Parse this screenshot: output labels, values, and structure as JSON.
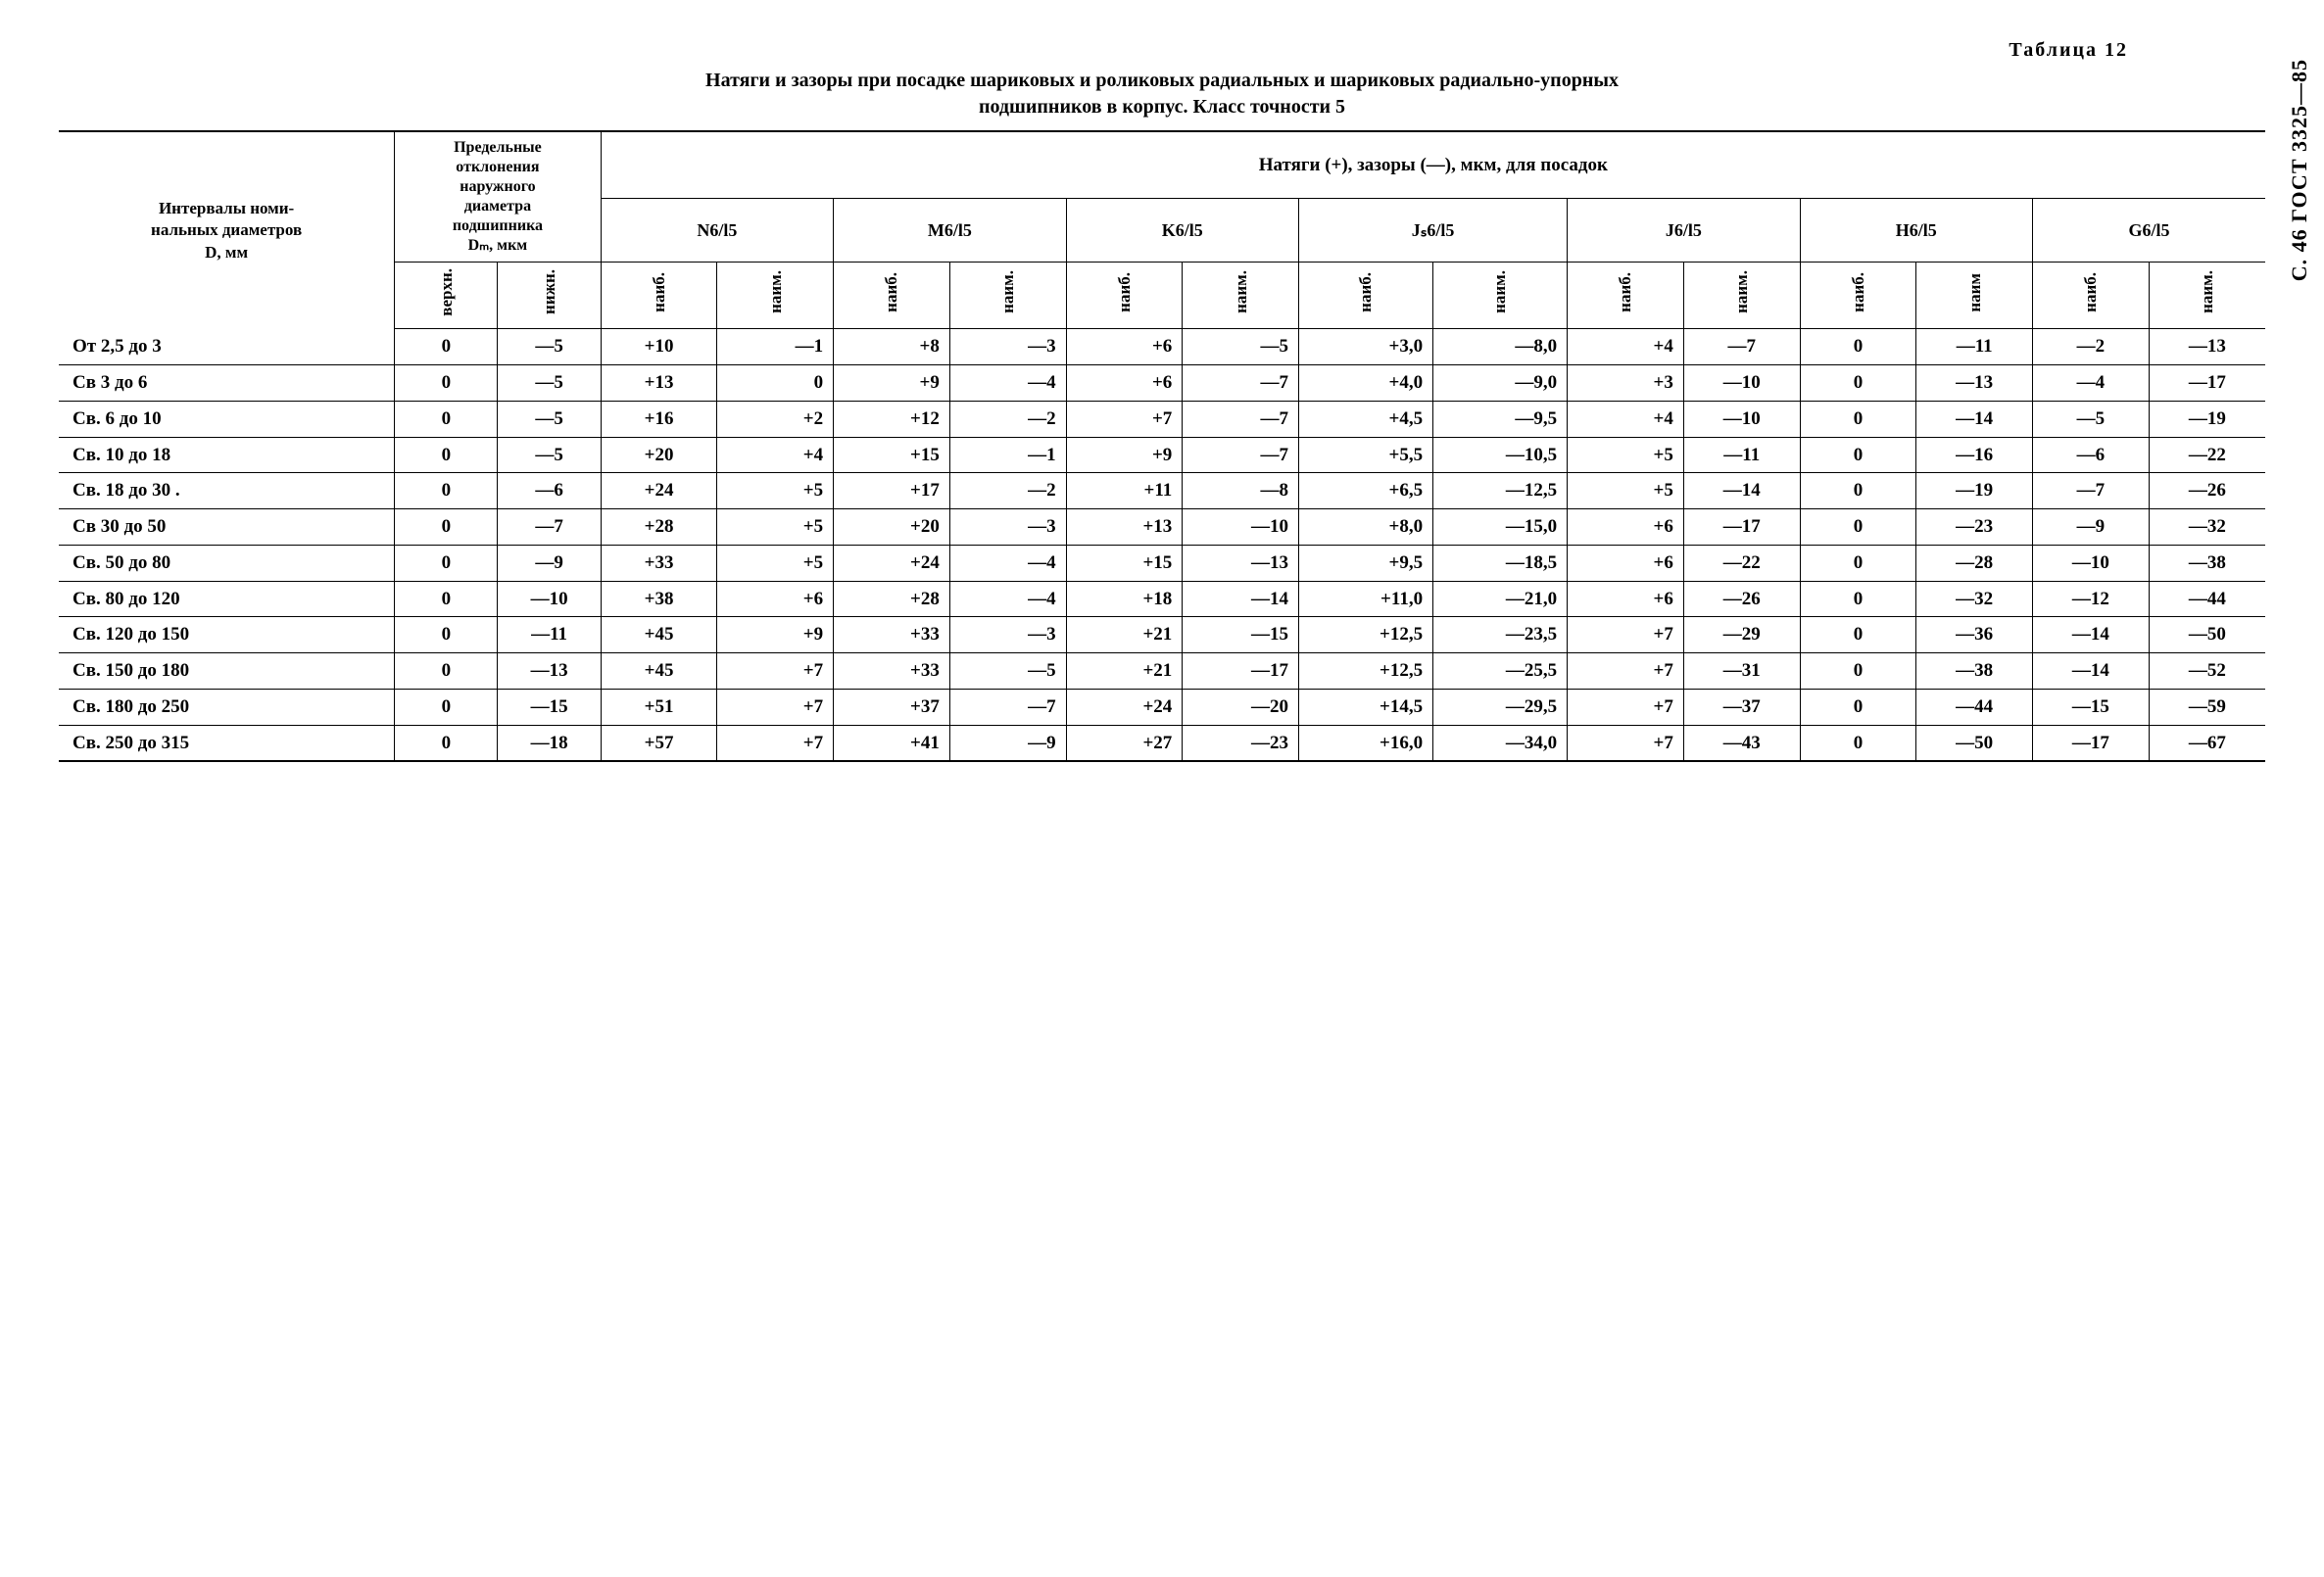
{
  "side_label": "С. 46 ГОСТ 3325—85",
  "table_number": "Таблица 12",
  "title_line1": "Натяги и зазоры при посадке шариковых и роликовых радиальных и шариковых радиально-упорных",
  "title_line2": "подшипников в корпус. Класс точности 5",
  "header": {
    "interval": "Интервалы номи-\nнальных диаметров\nD, мм",
    "deviation": "Предельные\nотклонения\nнаружного\nдиаметра\nподшипника\nDₘ, мкм",
    "fits_spanner": "Натяги (+), зазоры (—), мкм, для посадок",
    "fits": [
      "N6/l5",
      "M6/l5",
      "K6/l5",
      "Jₛ6/l5",
      "J6/l5",
      "H6/l5",
      "G6/l5"
    ],
    "dev_sub": {
      "upper": "верхн.",
      "lower": "нижн."
    },
    "fit_sub": {
      "max": "наиб.",
      "min": "наим."
    },
    "fit_sub_h6": {
      "max": "наиб.",
      "min": "наим"
    }
  },
  "rows": [
    {
      "interval": "От 2,5 до 3",
      "upper": "0",
      "lower": "—5",
      "n": [
        "+10",
        "—1"
      ],
      "m": [
        "+8",
        "—3"
      ],
      "k": [
        "+6",
        "—5"
      ],
      "js": [
        "+3,0",
        "—8,0"
      ],
      "j": [
        "+4",
        "—7"
      ],
      "h": [
        "0",
        "—11"
      ],
      "g": [
        "—2",
        "—13"
      ]
    },
    {
      "interval": "Св 3 до 6",
      "upper": "0",
      "lower": "—5",
      "n": [
        "+13",
        "0"
      ],
      "m": [
        "+9",
        "—4"
      ],
      "k": [
        "+6",
        "—7"
      ],
      "js": [
        "+4,0",
        "—9,0"
      ],
      "j": [
        "+3",
        "—10"
      ],
      "h": [
        "0",
        "—13"
      ],
      "g": [
        "—4",
        "—17"
      ]
    },
    {
      "interval": "Св. 6 до 10",
      "upper": "0",
      "lower": "—5",
      "n": [
        "+16",
        "+2"
      ],
      "m": [
        "+12",
        "—2"
      ],
      "k": [
        "+7",
        "—7"
      ],
      "js": [
        "+4,5",
        "—9,5"
      ],
      "j": [
        "+4",
        "—10"
      ],
      "h": [
        "0",
        "—14"
      ],
      "g": [
        "—5",
        "—19"
      ]
    },
    {
      "interval": "Св. 10 до 18",
      "upper": "0",
      "lower": "—5",
      "n": [
        "+20",
        "+4"
      ],
      "m": [
        "+15",
        "—1"
      ],
      "k": [
        "+9",
        "—7"
      ],
      "js": [
        "+5,5",
        "—10,5"
      ],
      "j": [
        "+5",
        "—11"
      ],
      "h": [
        "0",
        "—16"
      ],
      "g": [
        "—6",
        "—22"
      ]
    },
    {
      "interval": "Св. 18 до 30 .",
      "upper": "0",
      "lower": "—6",
      "n": [
        "+24",
        "+5"
      ],
      "m": [
        "+17",
        "—2"
      ],
      "k": [
        "+11",
        "—8"
      ],
      "js": [
        "+6,5",
        "—12,5"
      ],
      "j": [
        "+5",
        "—14"
      ],
      "h": [
        "0",
        "—19"
      ],
      "g": [
        "—7",
        "—26"
      ]
    },
    {
      "interval": "Св 30 до 50",
      "upper": "0",
      "lower": "—7",
      "n": [
        "+28",
        "+5"
      ],
      "m": [
        "+20",
        "—3"
      ],
      "k": [
        "+13",
        "—10"
      ],
      "js": [
        "+8,0",
        "—15,0"
      ],
      "j": [
        "+6",
        "—17"
      ],
      "h": [
        "0",
        "—23"
      ],
      "g": [
        "—9",
        "—32"
      ]
    },
    {
      "interval": "Св. 50 до 80",
      "upper": "0",
      "lower": "—9",
      "n": [
        "+33",
        "+5"
      ],
      "m": [
        "+24",
        "—4"
      ],
      "k": [
        "+15",
        "—13"
      ],
      "js": [
        "+9,5",
        "—18,5"
      ],
      "j": [
        "+6",
        "—22"
      ],
      "h": [
        "0",
        "—28"
      ],
      "g": [
        "—10",
        "—38"
      ]
    },
    {
      "interval": "Св. 80 до 120",
      "upper": "0",
      "lower": "—10",
      "n": [
        "+38",
        "+6"
      ],
      "m": [
        "+28",
        "—4"
      ],
      "k": [
        "+18",
        "—14"
      ],
      "js": [
        "+11,0",
        "—21,0"
      ],
      "j": [
        "+6",
        "—26"
      ],
      "h": [
        "0",
        "—32"
      ],
      "g": [
        "—12",
        "—44"
      ]
    },
    {
      "interval": "Св. 120 до 150",
      "upper": "0",
      "lower": "—11",
      "n": [
        "+45",
        "+9"
      ],
      "m": [
        "+33",
        "—3"
      ],
      "k": [
        "+21",
        "—15"
      ],
      "js": [
        "+12,5",
        "—23,5"
      ],
      "j": [
        "+7",
        "—29"
      ],
      "h": [
        "0",
        "—36"
      ],
      "g": [
        "—14",
        "—50"
      ]
    },
    {
      "interval": "Св. 150 до 180",
      "upper": "0",
      "lower": "—13",
      "n": [
        "+45",
        "+7"
      ],
      "m": [
        "+33",
        "—5"
      ],
      "k": [
        "+21",
        "—17"
      ],
      "js": [
        "+12,5",
        "—25,5"
      ],
      "j": [
        "+7",
        "—31"
      ],
      "h": [
        "0",
        "—38"
      ],
      "g": [
        "—14",
        "—52"
      ]
    },
    {
      "interval": "Св. 180 до 250",
      "upper": "0",
      "lower": "—15",
      "n": [
        "+51",
        "+7"
      ],
      "m": [
        "+37",
        "—7"
      ],
      "k": [
        "+24",
        "—20"
      ],
      "js": [
        "+14,5",
        "—29,5"
      ],
      "j": [
        "+7",
        "—37"
      ],
      "h": [
        "0",
        "—44"
      ],
      "g": [
        "—15",
        "—59"
      ]
    },
    {
      "interval": "Св. 250 до 315",
      "upper": "0",
      "lower": "—18",
      "n": [
        "+57",
        "+7"
      ],
      "m": [
        "+41",
        "—9"
      ],
      "k": [
        "+27",
        "—23"
      ],
      "js": [
        "+16,0",
        "—34,0"
      ],
      "j": [
        "+7",
        "—43"
      ],
      "h": [
        "0",
        "—50"
      ],
      "g": [
        "—17",
        "—67"
      ]
    }
  ]
}
